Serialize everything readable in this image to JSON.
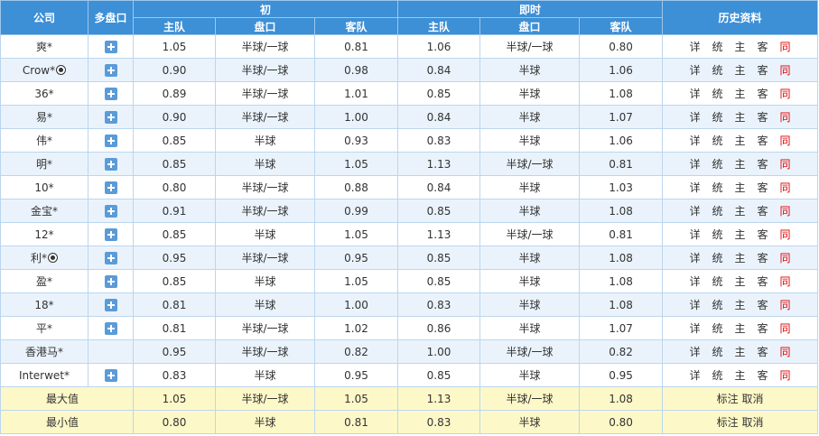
{
  "header": {
    "company": "公司",
    "multi": "多盘口",
    "initial": "初",
    "live": "即时",
    "history": "历史资料",
    "home": "主队",
    "handicap": "盘口",
    "away": "客队"
  },
  "rows": [
    {
      "company": "爽*",
      "ball": false,
      "plus": true,
      "i_home": "1.05",
      "i_hc": "半球/一球",
      "i_away": "0.81",
      "l_home": "1.06",
      "l_hc": "半球/一球",
      "l_away": "0.80"
    },
    {
      "company": "Crow*",
      "ball": true,
      "plus": true,
      "i_home": "0.90",
      "i_hc": "半球/一球",
      "i_away": "0.98",
      "l_home": "0.84",
      "l_hc": "半球",
      "l_away": "1.06"
    },
    {
      "company": "36*",
      "ball": false,
      "plus": true,
      "i_home": "0.89",
      "i_hc": "半球/一球",
      "i_away": "1.01",
      "l_home": "0.85",
      "l_hc": "半球",
      "l_away": "1.08"
    },
    {
      "company": "易*",
      "ball": false,
      "plus": true,
      "i_home": "0.90",
      "i_hc": "半球/一球",
      "i_away": "1.00",
      "l_home": "0.84",
      "l_hc": "半球",
      "l_away": "1.07"
    },
    {
      "company": "伟*",
      "ball": false,
      "plus": true,
      "i_home": "0.85",
      "i_hc": "半球",
      "i_away": "0.93",
      "l_home": "0.83",
      "l_hc": "半球",
      "l_away": "1.06"
    },
    {
      "company": "明*",
      "ball": false,
      "plus": true,
      "i_home": "0.85",
      "i_hc": "半球",
      "i_away": "1.05",
      "l_home": "1.13",
      "l_hc": "半球/一球",
      "l_away": "0.81"
    },
    {
      "company": "10*",
      "ball": false,
      "plus": true,
      "i_home": "0.80",
      "i_hc": "半球/一球",
      "i_away": "0.88",
      "l_home": "0.84",
      "l_hc": "半球",
      "l_away": "1.03"
    },
    {
      "company": "金宝*",
      "ball": false,
      "plus": true,
      "i_home": "0.91",
      "i_hc": "半球/一球",
      "i_away": "0.99",
      "l_home": "0.85",
      "l_hc": "半球",
      "l_away": "1.08"
    },
    {
      "company": "12*",
      "ball": false,
      "plus": true,
      "i_home": "0.85",
      "i_hc": "半球",
      "i_away": "1.05",
      "l_home": "1.13",
      "l_hc": "半球/一球",
      "l_away": "0.81"
    },
    {
      "company": "利*",
      "ball": true,
      "plus": true,
      "i_home": "0.95",
      "i_hc": "半球/一球",
      "i_away": "0.95",
      "l_home": "0.85",
      "l_hc": "半球",
      "l_away": "1.08"
    },
    {
      "company": "盈*",
      "ball": false,
      "plus": true,
      "i_home": "0.85",
      "i_hc": "半球",
      "i_away": "1.05",
      "l_home": "0.85",
      "l_hc": "半球",
      "l_away": "1.08"
    },
    {
      "company": "18*",
      "ball": false,
      "plus": true,
      "i_home": "0.81",
      "i_hc": "半球",
      "i_away": "1.00",
      "l_home": "0.83",
      "l_hc": "半球",
      "l_away": "1.08"
    },
    {
      "company": "平*",
      "ball": false,
      "plus": true,
      "i_home": "0.81",
      "i_hc": "半球/一球",
      "i_away": "1.02",
      "l_home": "0.86",
      "l_hc": "半球",
      "l_away": "1.07"
    },
    {
      "company": "香港马*",
      "ball": false,
      "plus": false,
      "i_home": "0.95",
      "i_hc": "半球/一球",
      "i_away": "0.82",
      "l_home": "1.00",
      "l_hc": "半球/一球",
      "l_away": "0.82"
    },
    {
      "company": "Interwet*",
      "ball": false,
      "plus": true,
      "i_home": "0.83",
      "i_hc": "半球",
      "i_away": "0.95",
      "l_home": "0.85",
      "l_hc": "半球",
      "l_away": "0.95"
    }
  ],
  "history_links": [
    "详",
    "统",
    "主",
    "客",
    "同"
  ],
  "summary": [
    {
      "label": "最大值",
      "i_home": "1.05",
      "i_hc": "半球/一球",
      "i_away": "1.05",
      "l_home": "1.13",
      "l_hc": "半球/一球",
      "l_away": "1.08",
      "mark": "标注",
      "cancel": "取消"
    },
    {
      "label": "最小值",
      "i_home": "0.80",
      "i_hc": "半球",
      "i_away": "0.81",
      "l_home": "0.83",
      "l_hc": "半球",
      "l_away": "0.80",
      "mark": "标注",
      "cancel": "取消"
    }
  ],
  "colors": {
    "header": "#3d8fd6",
    "row_alt": "#eaf3fc",
    "summary": "#fdf8c8",
    "history_same": "#e00000",
    "plus": "#5a9bd8"
  },
  "icons": {
    "plus": "plus-square-icon",
    "ball": "soccer-ball-icon"
  }
}
